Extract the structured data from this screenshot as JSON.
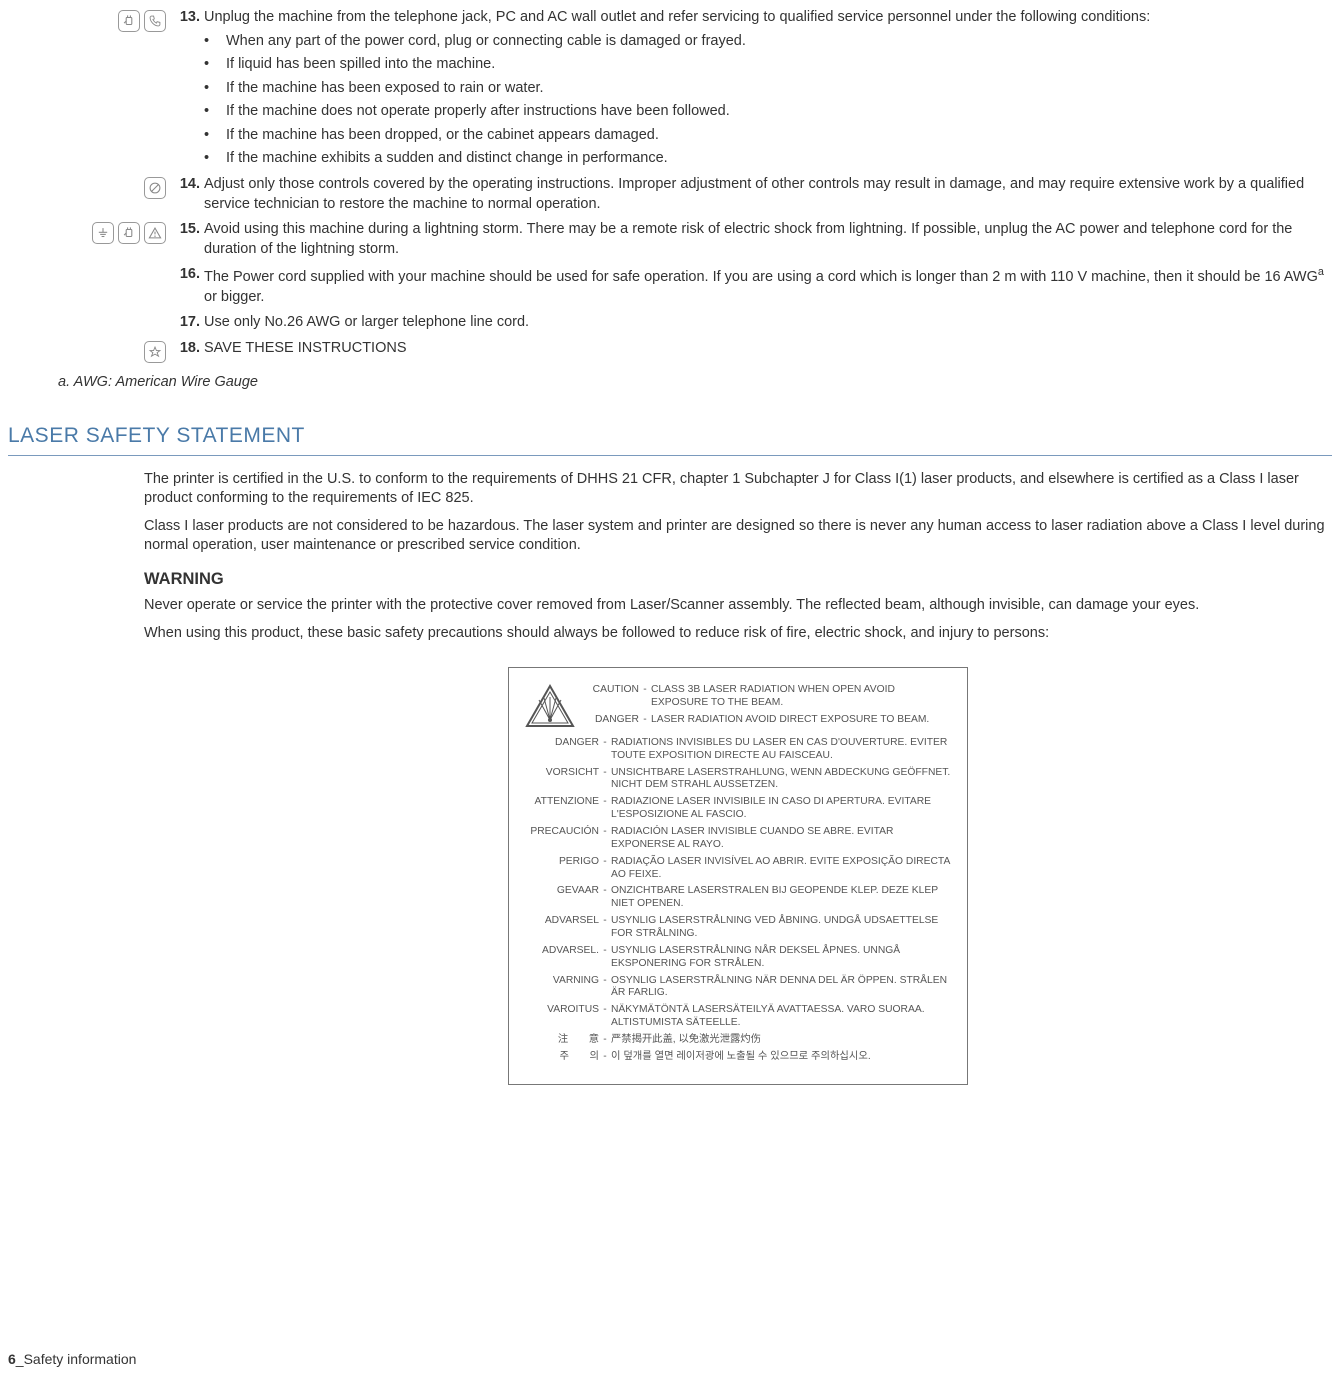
{
  "items": [
    {
      "num": "13.",
      "icons": [
        "plug",
        "phone"
      ],
      "text": "Unplug the machine from the telephone jack, PC and AC wall outlet and refer servicing to qualified service personnel under the following conditions:",
      "bullets": [
        "When any part of the power cord, plug or connecting cable is damaged or frayed.",
        "If liquid has been spilled into the machine.",
        "If the machine has been exposed to rain or water.",
        "If the machine does not operate properly after instructions have been followed.",
        "If the machine has been dropped, or the cabinet appears damaged.",
        "If the machine exhibits a sudden and distinct change in performance."
      ]
    },
    {
      "num": "14.",
      "icons": [
        "forbid"
      ],
      "text": "Adjust only those controls covered by the operating instructions. Improper adjustment of other controls may result in damage, and may require extensive work by a qualified service technician to restore the machine to normal operation."
    },
    {
      "num": "15.",
      "icons": [
        "ground",
        "plug",
        "warn"
      ],
      "text": "Avoid using this machine during a lightning storm. There may be a remote risk of electric shock from lightning. If possible, unplug the AC power and telephone cord for the duration of the lightning storm."
    },
    {
      "num": "16.",
      "icons": [],
      "text_html": "The Power cord supplied with your machine should be used for safe operation. If you are using a cord which is longer than 2 m with 110 V machine, then it should be 16 AWG<sup>a</sup> or bigger."
    },
    {
      "num": "17.",
      "icons": [],
      "text": "Use only No.26 AWG or larger telephone line cord."
    },
    {
      "num": "18.",
      "icons": [
        "star"
      ],
      "text": "SAVE THESE INSTRUCTIONS"
    }
  ],
  "footnote": "a. AWG: American Wire Gauge",
  "laser_heading": "LASER SAFETY STATEMENT",
  "laser_p1": "The printer is certified in the U.S. to conform to the requirements of DHHS 21 CFR, chapter 1 Subchapter J for Class I(1) laser products, and elsewhere is certified as a Class I laser product conforming to the requirements of IEC 825.",
  "laser_p2": "Class I laser products are not considered to be hazardous. The laser system and printer are designed so there is never any human access to laser radiation above a Class I level during normal operation, user maintenance or prescribed service condition.",
  "warning_h": "WARNING",
  "warning_p1": "Never operate or service the printer with the protective cover removed from Laser/Scanner assembly. The reflected beam, although invisible, can damage your eyes.",
  "warning_p2": "When using this product, these basic safety precautions should always be followed to reduce risk of fire, electric shock, and injury to persons:",
  "label_caution": {
    "label": "CAUTION",
    "text": "CLASS 3B LASER RADIATION WHEN OPEN AVOID EXPOSURE TO THE BEAM."
  },
  "label_danger_top": {
    "label": "DANGER",
    "text": "LASER RADIATION AVOID DIRECT EXPOSURE TO BEAM."
  },
  "label_langs": [
    {
      "label": "DANGER",
      "text": "RADIATIONS INVISIBLES DU LASER EN CAS D'OUVERTURE. EVITER TOUTE EXPOSITION DIRECTE AU FAISCEAU."
    },
    {
      "label": "VORSICHT",
      "text": "UNSICHTBARE LASERSTRAHLUNG, WENN ABDECKUNG GEÖFFNET. NICHT DEM STRAHL AUSSETZEN."
    },
    {
      "label": "ATTENZIONE",
      "text": "RADIAZIONE LASER INVISIBILE IN CASO DI APERTURA. EVITARE L'ESPOSIZIONE AL FASCIO."
    },
    {
      "label": "PRECAUCIÓN",
      "text": "RADIACIÓN LASER INVISIBLE CUANDO SE ABRE. EVITAR EXPONERSE AL RAYO."
    },
    {
      "label": "PERIGO",
      "text": "RADIAÇÃO LASER INVISÍVEL AO ABRIR. EVITE EXPOSIÇÃO DIRECTA AO FEIXE."
    },
    {
      "label": "GEVAAR",
      "text": "ONZICHTBARE LASERSTRALEN BIJ GEOPENDE KLEP. DEZE KLEP NIET OPENEN."
    },
    {
      "label": "ADVARSEL",
      "text": "USYNLIG LASERSTRÅLNING VED ÅBNING. UNDGÅ UDSAETTELSE FOR STRÅLNING."
    },
    {
      "label": "ADVARSEL.",
      "text": "USYNLIG LASERSTRÅLNING NÅR DEKSEL ÅPNES. UNNGÅ EKSPONERING FOR STRÅLEN."
    },
    {
      "label": "VARNING",
      "text": "OSYNLIG LASERSTRÅLNING NÄR DENNA DEL ÄR ÖPPEN. STRÅLEN ÄR FARLIG."
    },
    {
      "label": "VAROITUS",
      "text": "NÄKYMÄTÖNTÄ LASERSÄTEILYÄ AVATTAESSA. VARO SUORAA. ALTISTUMISTA SÄTEELLE."
    },
    {
      "label": "注　　意",
      "text": "严禁揭开此盖, 以免激光泄露灼伤"
    },
    {
      "label": "주　　의",
      "text": "이 덮개를 열면 레이저광에 노출될 수 있으므로 주의하십시오."
    }
  ],
  "footer_num": "6",
  "footer_text": "_Safety information"
}
